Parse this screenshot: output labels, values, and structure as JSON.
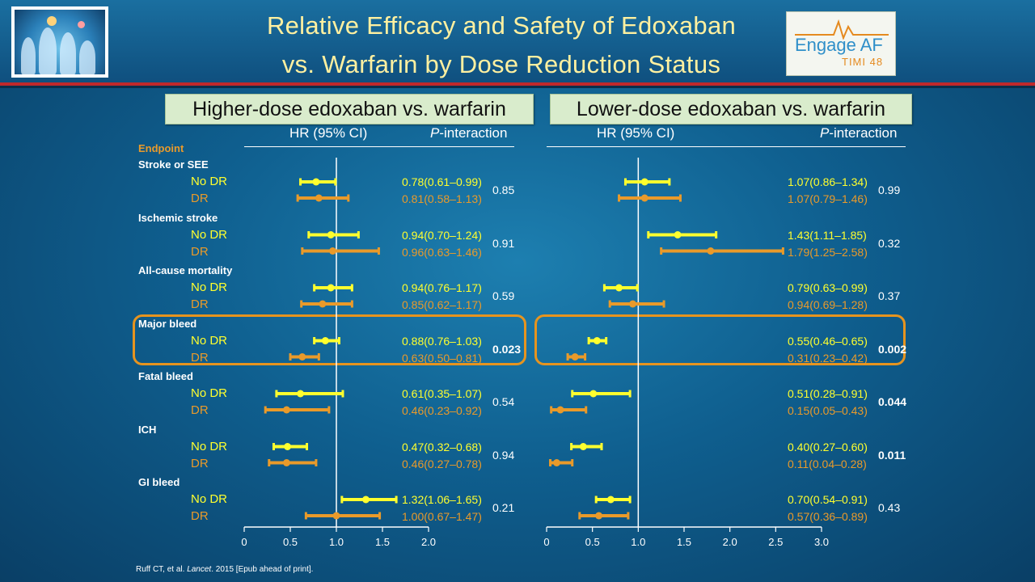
{
  "title": {
    "line1": "Relative Efficacy and Safety of Edoxaban",
    "line2": "vs. Warfarin by Dose Reduction Status"
  },
  "logo_right": {
    "brand": "Engage AF",
    "sub": "TIMI 48"
  },
  "endpoint_header": "Endpoint",
  "footnote": {
    "pre": "Ruff CT, et al. ",
    "journal": "Lancet",
    "post": ". 2015 [Epub ahead of print]."
  },
  "colors": {
    "no_dr": "#ffff2e",
    "dr": "#e99a2a",
    "highlight": "#e6941f",
    "header_bg": "#d9eccc"
  },
  "chart_data": [
    {
      "type": "forest",
      "panel": "Higher-dose edoxaban vs. warfarin",
      "col_hr": "HR (95% CI)",
      "col_p_italic": "P",
      "col_p_rest": "-interaction",
      "xlim": [
        0,
        2.0
      ],
      "xticks": [
        0,
        0.5,
        1.0,
        1.5,
        2.0
      ],
      "xtick_labels": [
        "0",
        "0.5",
        "1.0",
        "1.5",
        "2.0"
      ],
      "reference": 1.0,
      "rows": [
        {
          "endpoint": "Stroke or SEE",
          "p": "0.85",
          "p_bold": false,
          "no_dr": {
            "label": "No DR",
            "hr": 0.78,
            "lo": 0.61,
            "hi": 0.99,
            "text": "0.78(0.61–0.99)"
          },
          "dr": {
            "label": "DR",
            "hr": 0.81,
            "lo": 0.58,
            "hi": 1.13,
            "text": "0.81(0.58–1.13)"
          }
        },
        {
          "endpoint": "Ischemic stroke",
          "p": "0.91",
          "p_bold": false,
          "no_dr": {
            "label": "No DR",
            "hr": 0.94,
            "lo": 0.7,
            "hi": 1.24,
            "text": "0.94(0.70–1.24)"
          },
          "dr": {
            "label": "DR",
            "hr": 0.96,
            "lo": 0.63,
            "hi": 1.46,
            "text": "0.96(0.63–1.46)"
          }
        },
        {
          "endpoint": "All-cause mortality",
          "p": "0.59",
          "p_bold": false,
          "no_dr": {
            "label": "No DR",
            "hr": 0.94,
            "lo": 0.76,
            "hi": 1.17,
            "text": "0.94(0.76–1.17)"
          },
          "dr": {
            "label": "DR",
            "hr": 0.85,
            "lo": 0.62,
            "hi": 1.17,
            "text": "0.85(0.62–1.17)"
          }
        },
        {
          "endpoint": "Major bleed",
          "p": "0.023",
          "p_bold": true,
          "highlight": true,
          "no_dr": {
            "label": "No DR",
            "hr": 0.88,
            "lo": 0.76,
            "hi": 1.03,
            "text": "0.88(0.76–1.03)"
          },
          "dr": {
            "label": "DR",
            "hr": 0.63,
            "lo": 0.5,
            "hi": 0.81,
            "text": "0.63(0.50–0.81)"
          }
        },
        {
          "endpoint": "Fatal bleed",
          "p": "0.54",
          "p_bold": false,
          "no_dr": {
            "label": "No DR",
            "hr": 0.61,
            "lo": 0.35,
            "hi": 1.07,
            "text": "0.61(0.35–1.07)"
          },
          "dr": {
            "label": "DR",
            "hr": 0.46,
            "lo": 0.23,
            "hi": 0.92,
            "text": "0.46(0.23–0.92)"
          }
        },
        {
          "endpoint": "ICH",
          "p": "0.94",
          "p_bold": false,
          "no_dr": {
            "label": "No DR",
            "hr": 0.47,
            "lo": 0.32,
            "hi": 0.68,
            "text": "0.47(0.32–0.68)"
          },
          "dr": {
            "label": "DR",
            "hr": 0.46,
            "lo": 0.27,
            "hi": 0.78,
            "text": "0.46(0.27–0.78)"
          }
        },
        {
          "endpoint": "GI bleed",
          "p": "0.21",
          "p_bold": false,
          "no_dr": {
            "label": "No DR",
            "hr": 1.32,
            "lo": 1.06,
            "hi": 1.65,
            "text": "1.32(1.06–1.65)"
          },
          "dr": {
            "label": "DR",
            "hr": 1.0,
            "lo": 0.67,
            "hi": 1.47,
            "text": "1.00(0.67–1.47)"
          }
        }
      ]
    },
    {
      "type": "forest",
      "panel": "Lower-dose edoxaban vs. warfarin",
      "col_hr": "HR (95% CI)",
      "col_p_italic": "P",
      "col_p_rest": "-interaction",
      "xlim": [
        0,
        3.0
      ],
      "xticks": [
        0,
        0.5,
        1.0,
        1.5,
        2.0,
        2.5,
        3.0
      ],
      "xtick_labels": [
        "0",
        "0.5",
        "1.0",
        "1.5",
        "2.0",
        "2.5",
        "3.0"
      ],
      "reference": 1.0,
      "rows": [
        {
          "endpoint": "Stroke or SEE",
          "p": "0.99",
          "p_bold": false,
          "no_dr": {
            "label": "No DR",
            "hr": 1.07,
            "lo": 0.86,
            "hi": 1.34,
            "text": "1.07(0.86–1.34)"
          },
          "dr": {
            "label": "DR",
            "hr": 1.07,
            "lo": 0.79,
            "hi": 1.46,
            "text": "1.07(0.79–1.46)"
          }
        },
        {
          "endpoint": "Ischemic stroke",
          "p": "0.32",
          "p_bold": false,
          "no_dr": {
            "label": "No DR",
            "hr": 1.43,
            "lo": 1.11,
            "hi": 1.85,
            "text": "1.43(1.11–1.85)"
          },
          "dr": {
            "label": "DR",
            "hr": 1.79,
            "lo": 1.25,
            "hi": 2.58,
            "text": "1.79(1.25–2.58)"
          }
        },
        {
          "endpoint": "All-cause mortality",
          "p": "0.37",
          "p_bold": false,
          "no_dr": {
            "label": "No DR",
            "hr": 0.79,
            "lo": 0.63,
            "hi": 0.99,
            "text": "0.79(0.63–0.99)"
          },
          "dr": {
            "label": "DR",
            "hr": 0.94,
            "lo": 0.69,
            "hi": 1.28,
            "text": "0.94(0.69–1.28)"
          }
        },
        {
          "endpoint": "Major bleed",
          "p": "0.002",
          "p_bold": true,
          "highlight": true,
          "no_dr": {
            "label": "No DR",
            "hr": 0.55,
            "lo": 0.46,
            "hi": 0.65,
            "text": "0.55(0.46–0.65)"
          },
          "dr": {
            "label": "DR",
            "hr": 0.31,
            "lo": 0.23,
            "hi": 0.42,
            "text": "0.31(0.23–0.42)"
          }
        },
        {
          "endpoint": "Fatal bleed",
          "p": "0.044",
          "p_bold": true,
          "no_dr": {
            "label": "No DR",
            "hr": 0.51,
            "lo": 0.28,
            "hi": 0.91,
            "text": "0.51(0.28–0.91)"
          },
          "dr": {
            "label": "DR",
            "hr": 0.15,
            "lo": 0.05,
            "hi": 0.43,
            "text": "0.15(0.05–0.43)"
          }
        },
        {
          "endpoint": "ICH",
          "p": "0.011",
          "p_bold": true,
          "no_dr": {
            "label": "No DR",
            "hr": 0.4,
            "lo": 0.27,
            "hi": 0.6,
            "text": "0.40(0.27–0.60)"
          },
          "dr": {
            "label": "DR",
            "hr": 0.11,
            "lo": 0.04,
            "hi": 0.28,
            "text": "0.11(0.04–0.28)"
          }
        },
        {
          "endpoint": "GI bleed",
          "p": "0.43",
          "p_bold": false,
          "no_dr": {
            "label": "No DR",
            "hr": 0.7,
            "lo": 0.54,
            "hi": 0.91,
            "text": "0.70(0.54–0.91)"
          },
          "dr": {
            "label": "DR",
            "hr": 0.57,
            "lo": 0.36,
            "hi": 0.89,
            "text": "0.57(0.36–0.89)"
          }
        }
      ]
    }
  ]
}
